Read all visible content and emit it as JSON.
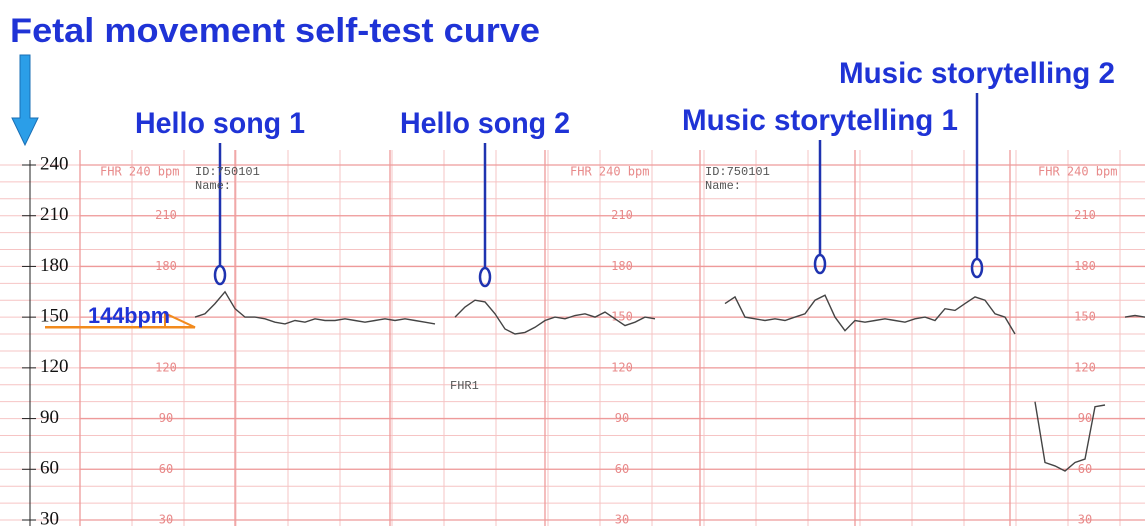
{
  "title": "Fetal movement self-test curve",
  "annotations": [
    "Hello song 1",
    "Hello song 2",
    "Music storytelling 1",
    "Music storytelling 2"
  ],
  "baseline_label": "144bpm",
  "baseline_value": 144,
  "paper": {
    "header": "FHR 240 bpm",
    "id": "ID:750101",
    "name": "Name:",
    "channel": "FHR1",
    "scale": [
      210,
      180,
      150,
      120,
      90,
      60,
      30
    ]
  },
  "chart_data": {
    "type": "line",
    "color": "#444444",
    "ylim": [
      30,
      240
    ],
    "yticks": [
      240,
      210,
      180,
      150,
      120,
      90,
      60,
      30
    ],
    "values": [
      150,
      152,
      158,
      165,
      155,
      150,
      150,
      149,
      147,
      146,
      148,
      147,
      149,
      148,
      148,
      149,
      148,
      147,
      148,
      149,
      148,
      149,
      148,
      147,
      146,
      null,
      150,
      156,
      160,
      159,
      152,
      143,
      140,
      141,
      144,
      148,
      150,
      149,
      151,
      152,
      150,
      153,
      149,
      145,
      147,
      150,
      149,
      null,
      null,
      null,
      null,
      null,
      null,
      158,
      162,
      150,
      149,
      148,
      149,
      148,
      150,
      152,
      160,
      163,
      150,
      142,
      148,
      147,
      148,
      149,
      148,
      147,
      149,
      150,
      148,
      155,
      154,
      158,
      162,
      160,
      152,
      150,
      140,
      null,
      100,
      64,
      62,
      59,
      64,
      66,
      97,
      98,
      null,
      150,
      151,
      150
    ]
  }
}
